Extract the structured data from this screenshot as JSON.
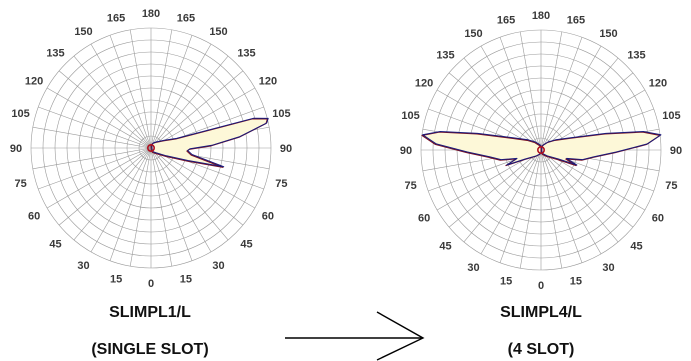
{
  "colors": {
    "grid": "#9a9a9a",
    "outline_blue": "#1a1a7a",
    "outline_red": "#7a1020",
    "fill": "#fdf8d8",
    "center_ring": "#b01020"
  },
  "tick_labels": [
    "0",
    "15",
    "30",
    "45",
    "60",
    "75",
    "90",
    "105",
    "120",
    "135",
    "150",
    "165",
    "180"
  ],
  "left_chart": {
    "title": "SLIMPL1/L",
    "subtitle": "(SINGLE SLOT)"
  },
  "right_chart": {
    "title": "SLIMPL4/L",
    "subtitle": "(4 SLOT)"
  },
  "arrow_icon": "arrow-right-icon",
  "chart_data": [
    {
      "type": "polar",
      "title": "SLIMPL1/L",
      "subtitle": "(SINGLE SLOT)",
      "angle_range": [
        0,
        180
      ],
      "radial_range": [
        0,
        1
      ],
      "grid": true,
      "series": [
        {
          "points": [
            [
              10,
              0.02
            ],
            [
              20,
              0.04
            ],
            [
              40,
              0.06
            ],
            [
              60,
              0.14
            ],
            [
              70,
              0.32
            ],
            [
              75,
              0.62
            ],
            [
              80,
              0.34
            ],
            [
              85,
              0.3
            ],
            [
              88,
              0.32
            ],
            [
              92,
              0.5
            ],
            [
              97,
              0.74
            ],
            [
              102,
              0.98
            ],
            [
              104,
              1.0
            ],
            [
              106,
              0.88
            ],
            [
              110,
              0.22
            ],
            [
              120,
              0.12
            ],
            [
              140,
              0.06
            ],
            [
              160,
              0.04
            ],
            [
              180,
              0.02
            ]
          ]
        }
      ]
    },
    {
      "type": "polar",
      "title": "SLIMPL4/L",
      "subtitle": "(4 SLOT)",
      "angle_range": [
        0,
        180
      ],
      "radial_range": [
        0,
        1
      ],
      "grid": true,
      "series": [
        {
          "points": [
            [
              0,
              0.02
            ],
            [
              20,
              0.04
            ],
            [
              40,
              0.07
            ],
            [
              60,
              0.16
            ],
            [
              66,
              0.32
            ],
            [
              70,
              0.22
            ],
            [
              76,
              0.35
            ],
            [
              82,
              0.44
            ],
            [
              88,
              0.62
            ],
            [
              93,
              0.88
            ],
            [
              97,
              1.0
            ],
            [
              100,
              0.86
            ],
            [
              104,
              0.55
            ],
            [
              112,
              0.26
            ],
            [
              125,
              0.14
            ],
            [
              140,
              0.08
            ],
            [
              160,
              0.04
            ],
            [
              180,
              0.02
            ]
          ]
        }
      ]
    }
  ]
}
